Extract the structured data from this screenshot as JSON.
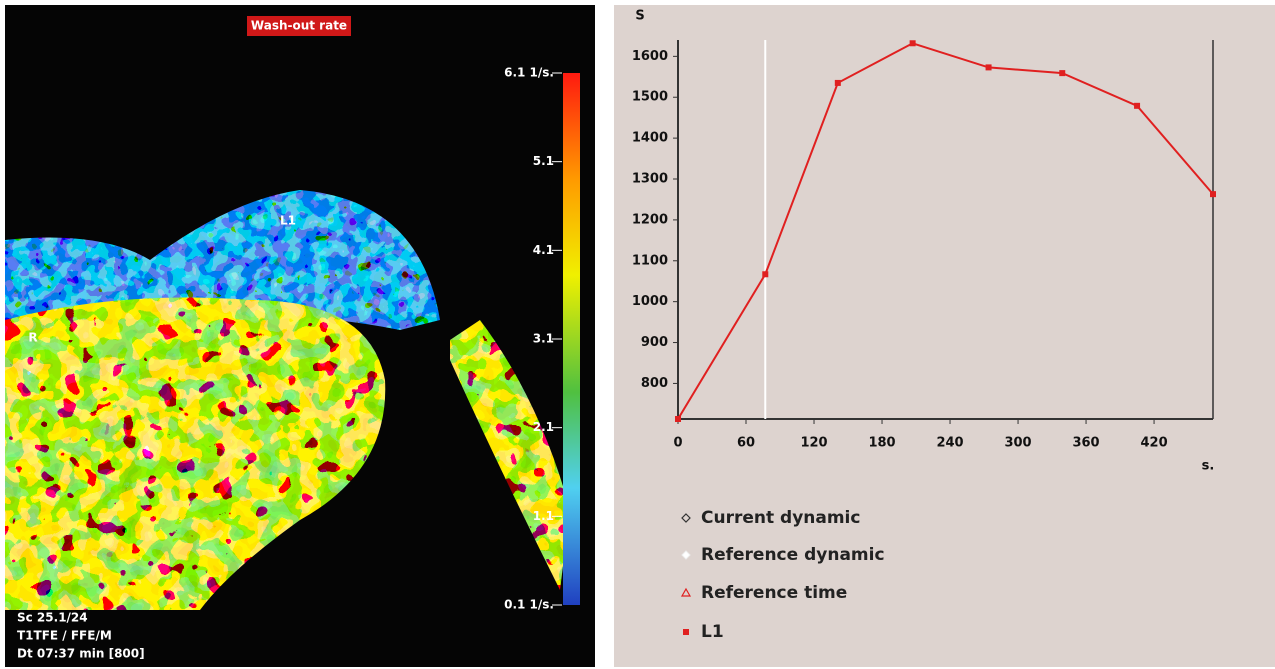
{
  "image_panel": {
    "title": "Wash-out rate",
    "labels": [
      "L1",
      "R"
    ],
    "info": [
      "Sc 25.1/24",
      "T1TFE / FFE/M",
      "Dt 07:37 min [800]"
    ],
    "colorbar": {
      "range": [
        0.1,
        6.1
      ],
      "ticks": [
        {
          "value": 6.1,
          "label": "6.1 1/s."
        },
        5.1,
        4.1,
        3.1,
        2.1,
        1.1,
        {
          "value": 0.1,
          "label": "0.1 1/s."
        }
      ]
    }
  },
  "chart_data": {
    "type": "line",
    "ylabel": "S",
    "xlabel": "s.",
    "x": [
      0,
      77,
      141,
      207,
      274,
      339,
      405,
      472
    ],
    "series": [
      {
        "name": "L1",
        "color": "#e02020",
        "values": [
          713,
          1067,
          1535,
          1632,
          1573,
          1559,
          1479,
          1263
        ]
      }
    ],
    "xlim": [
      0,
      472
    ],
    "ylim": [
      713,
      1640
    ],
    "xticks": [
      0,
      60,
      120,
      180,
      240,
      300,
      360,
      420
    ],
    "yticks": [
      800,
      900,
      1000,
      1100,
      1200,
      1300,
      1400,
      1500,
      1600
    ],
    "reference_time": 77,
    "legend_extra": [
      "Current dynamic",
      "Reference dynamic",
      "Reference time"
    ]
  }
}
